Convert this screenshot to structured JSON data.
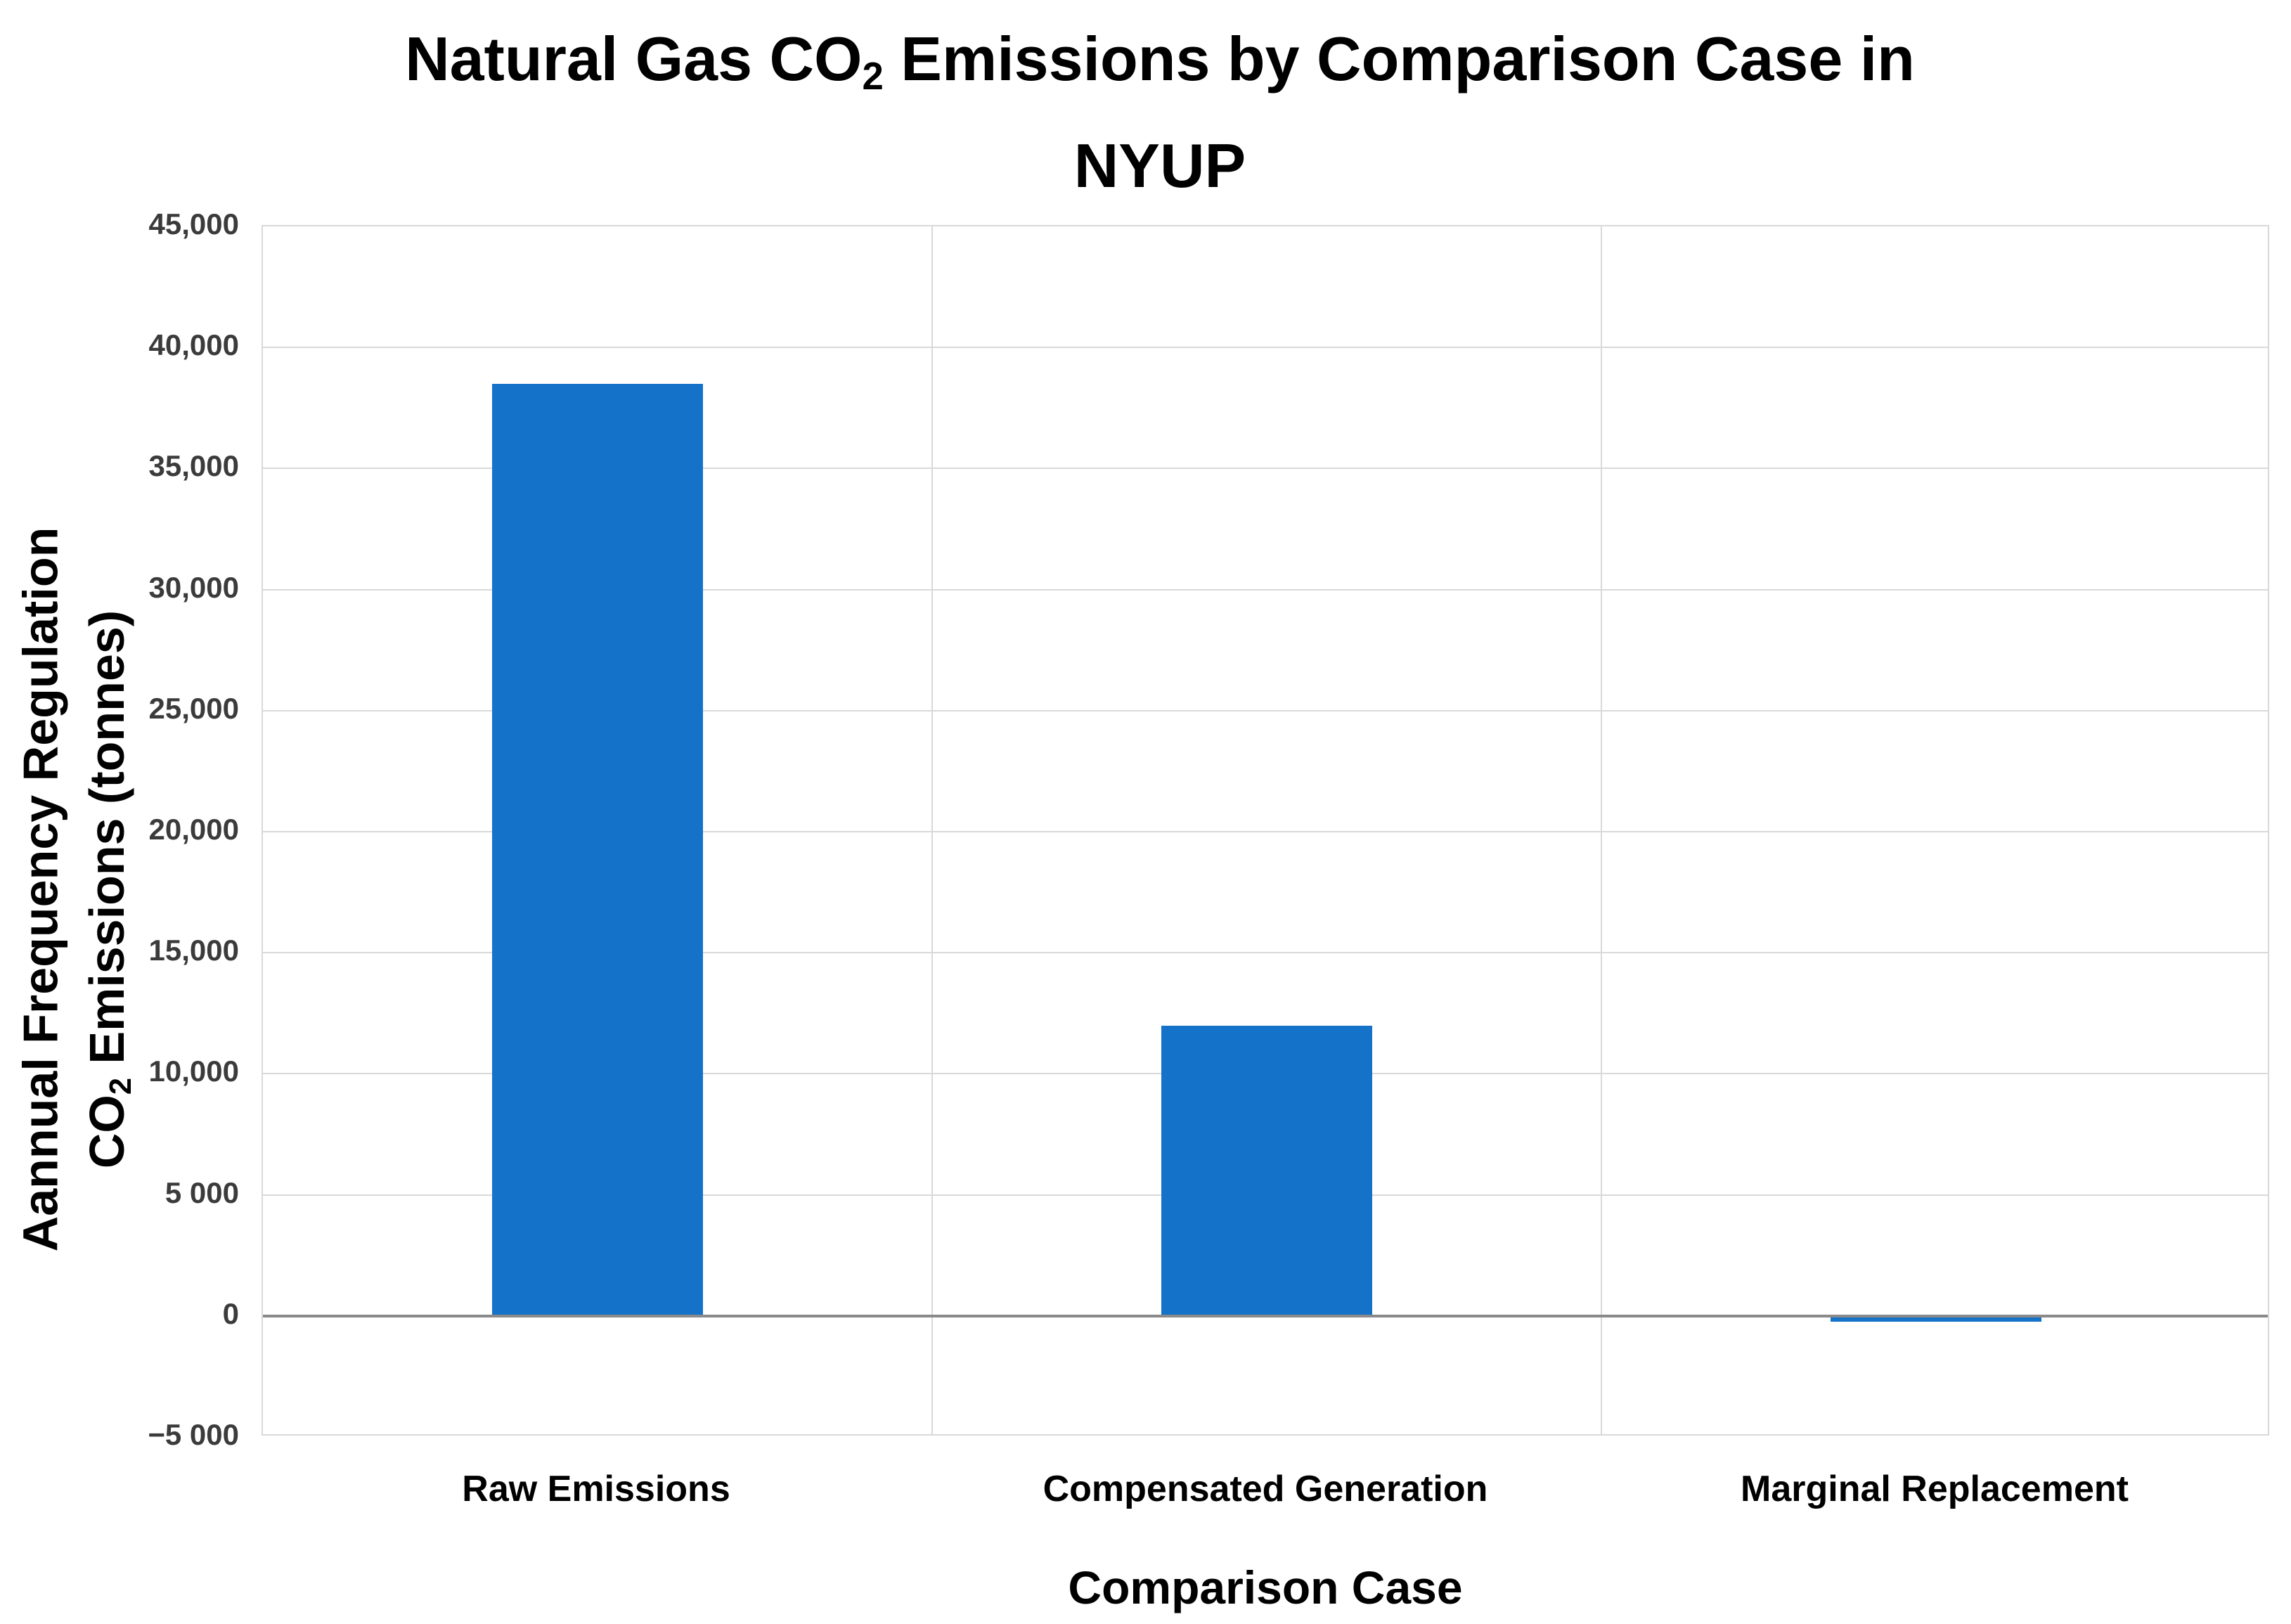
{
  "chart": {
    "title": {
      "line1_prefix": "Natural Gas CO",
      "line1_sub": "2",
      "line1_suffix": " Emissions by Comparison Case in",
      "line2": "NYUP"
    },
    "y_axis": {
      "label_line1": "Aannual Frequency Regulation",
      "label_line2_prefix": "CO",
      "label_line2_sub": "2",
      "label_line2_suffix": " Emissions (tonnes)",
      "tick_labels": [
        "45,000",
        "40,000",
        "35,000",
        "30,000",
        "25,000",
        "20,000",
        "15,000",
        "10,000",
        "5 000",
        "0",
        "−5 000"
      ]
    },
    "x_axis": {
      "label": "Comparison Case"
    }
  },
  "chart_data": {
    "type": "bar",
    "categories": [
      "Raw Emissions",
      "Compensated Generation",
      "Marginal Replacement"
    ],
    "values": [
      38500,
      12000,
      -250
    ],
    "title": "Natural Gas CO2 Emissions by Comparison Case in NYUP",
    "xlabel": "Comparison Case",
    "ylabel": "Aannual Frequency Regulation CO2 Emissions (tonnes)",
    "ylim": [
      -5000,
      45000
    ],
    "ytick_step": 5000,
    "grid": true,
    "legend": false,
    "bar_color": "#1572c9",
    "gridline_color": "#d9d9d9",
    "zero_line_color": "#8a8a8a",
    "text_color": "#000000"
  }
}
